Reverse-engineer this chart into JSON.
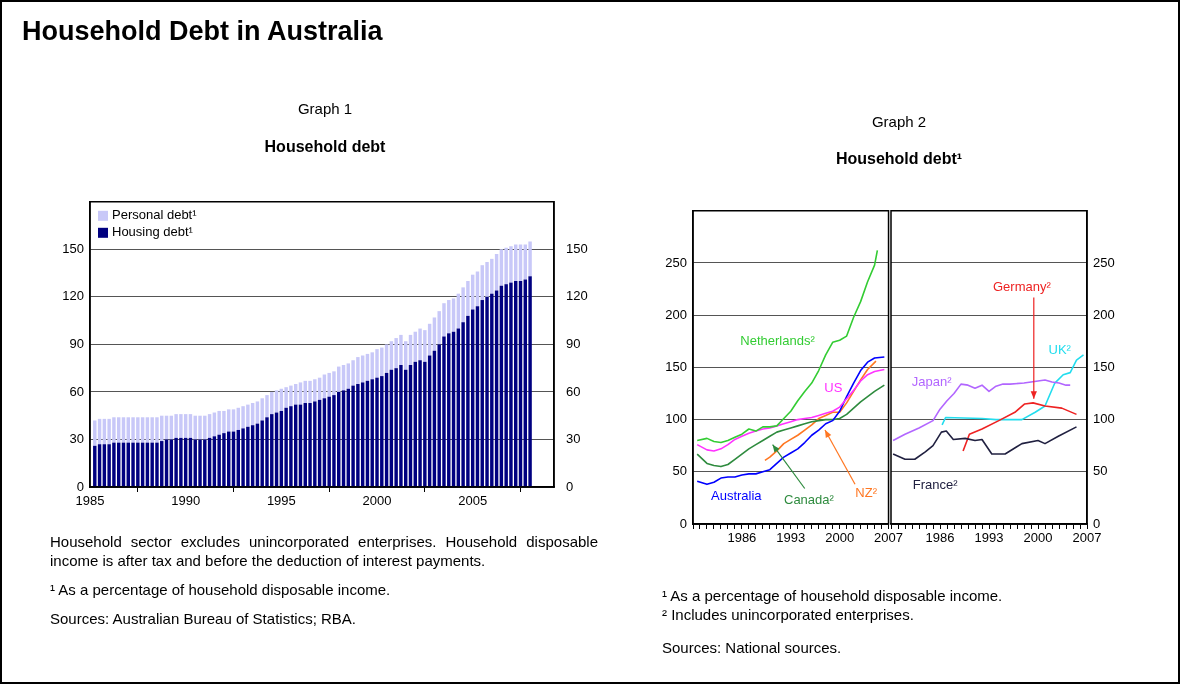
{
  "chart_data": [
    {
      "type": "bar",
      "title": "Household debt",
      "subtitle": "Graph 1",
      "stacked": true,
      "legend": "top left",
      "grid": "y",
      "annotations": [
        "Household Debt in Australia",
        "Household sector excludes unincorporated enterprises. Household disposable income is after tax and before the deduction of interest payments.",
        "¹ As a percentage of household disposable income.",
        "Sources: Australian Bureau of Statistics; RBA."
      ],
      "x": [
        1985.25,
        1985.5,
        1985.75,
        1986,
        1986.25,
        1986.5,
        1986.75,
        1987,
        1987.25,
        1987.5,
        1987.75,
        1988,
        1988.25,
        1988.5,
        1988.75,
        1989,
        1989.25,
        1989.5,
        1989.75,
        1990,
        1990.25,
        1990.5,
        1990.75,
        1991,
        1991.25,
        1991.5,
        1991.75,
        1992,
        1992.25,
        1992.5,
        1992.75,
        1993,
        1993.25,
        1993.5,
        1993.75,
        1994,
        1994.25,
        1994.5,
        1994.75,
        1995,
        1995.25,
        1995.5,
        1995.75,
        1996,
        1996.25,
        1996.5,
        1996.75,
        1997,
        1997.25,
        1997.5,
        1997.75,
        1998,
        1998.25,
        1998.5,
        1998.75,
        1999,
        1999.25,
        1999.5,
        1999.75,
        2000,
        2000.25,
        2000.5,
        2000.75,
        2001,
        2001.25,
        2001.5,
        2001.75,
        2002,
        2002.25,
        2002.5,
        2002.75,
        2003,
        2003.25,
        2003.5,
        2003.75,
        2004,
        2004.25,
        2004.5,
        2004.75,
        2005,
        2005.25,
        2005.5,
        2005.75,
        2006,
        2006.25,
        2006.5,
        2006.75,
        2007,
        2007.25,
        2007.5,
        2007.75,
        2008
      ],
      "series": [
        {
          "name": "Housing debt¹",
          "color": "#000080",
          "values": [
            26,
            27,
            27,
            27,
            28,
            28,
            28,
            28,
            28,
            28,
            28,
            28,
            28,
            28,
            29,
            30,
            30,
            31,
            31,
            31,
            31,
            30,
            30,
            30,
            31,
            32,
            33,
            34,
            35,
            35,
            36,
            37,
            38,
            39,
            40,
            42,
            44,
            46,
            47,
            48,
            50,
            51,
            52,
            52,
            53,
            53,
            54,
            55,
            56,
            57,
            58,
            60,
            61,
            62,
            64,
            65,
            66,
            67,
            68,
            69,
            70,
            72,
            74,
            75,
            77,
            74,
            77,
            79,
            80,
            79,
            83,
            86,
            90,
            95,
            97,
            98,
            100,
            104,
            108,
            112,
            114,
            118,
            120,
            122,
            124,
            127,
            128,
            129,
            130,
            130,
            131,
            133
          ]
        },
        {
          "name": "Personal debt¹",
          "color": "#c8c8f8",
          "values": [
            16,
            16,
            16,
            16,
            16,
            16,
            16,
            16,
            16,
            16,
            16,
            16,
            16,
            16,
            16,
            15,
            15,
            15,
            15,
            15,
            15,
            15,
            15,
            15,
            15,
            15,
            15,
            14,
            14,
            14,
            14,
            14,
            14,
            14,
            14,
            14,
            14,
            14,
            14,
            14,
            13,
            13,
            13,
            14,
            14,
            14,
            14,
            14,
            15,
            15,
            15,
            16,
            16,
            16,
            16,
            17,
            17,
            17,
            17,
            18,
            18,
            18,
            18,
            19,
            19,
            18,
            19,
            19,
            20,
            20,
            20,
            21,
            21,
            21,
            21,
            21,
            22,
            22,
            22,
            22,
            22,
            22,
            22,
            22,
            23,
            23,
            23,
            23,
            23,
            23,
            22,
            22
          ]
        }
      ],
      "xlim": [
        1985,
        2009.25
      ],
      "xticks": [
        1985,
        1990,
        1995,
        2000,
        2005
      ],
      "ylim": [
        0,
        180
      ],
      "yticks": [
        0,
        30,
        60,
        90,
        120,
        150
      ],
      "y2lim": [
        0,
        180
      ],
      "y2ticks": [
        0,
        30,
        60,
        90,
        120,
        150
      ]
    },
    {
      "type": "line",
      "title": "Household debt¹",
      "subtitle": "Graph 2",
      "grid": "y",
      "marker": "none",
      "line_style": "solid",
      "annotations": [
        "¹ As a percentage of household disposable income.",
        "² Includes unincorporated enterprises.",
        "Sources: National sources."
      ],
      "series": [
        {
          "name": "Netherlands²",
          "color": "#33cc33",
          "x": [
            1979.6,
            1981,
            1982,
            1983,
            1984,
            1985,
            1986,
            1987,
            1988,
            1989,
            1990,
            1991,
            1992,
            1993,
            1994,
            1995,
            1996,
            1997,
            1998,
            1999,
            2000,
            2001,
            2002,
            2003,
            2004,
            2005,
            2005.4
          ],
          "values": [
            80,
            82,
            79,
            78,
            80,
            83,
            86,
            91,
            89,
            93,
            93,
            94,
            101,
            108,
            118,
            127,
            135,
            147,
            162,
            174,
            176,
            180,
            198,
            213,
            232,
            248,
            262
          ]
        },
        {
          "name": "US",
          "color": "#ff33ff",
          "x": [
            1979.6,
            1981,
            1982,
            1983,
            1984,
            1985,
            1986,
            1987,
            1988,
            1989,
            1990,
            1991,
            1992,
            1993,
            1994,
            1995,
            1996,
            1997,
            1998,
            1999,
            2000,
            2001,
            2002,
            2003,
            2004,
            2005,
            2006.4
          ],
          "values": [
            76,
            71,
            70,
            72,
            76,
            81,
            84,
            87,
            89,
            91,
            92,
            94,
            96,
            98,
            100,
            101,
            102,
            104,
            106,
            108,
            112,
            120,
            128,
            137,
            143,
            146,
            148
          ]
        },
        {
          "name": "Australia",
          "color": "#0000ff",
          "x": [
            1979.6,
            1981,
            1982,
            1983,
            1984,
            1985,
            1986,
            1987,
            1988,
            1989,
            1990,
            1991,
            1992,
            1993,
            1994,
            1995,
            1996,
            1997,
            1998,
            1999,
            2000,
            2001,
            2002,
            2003,
            2004,
            2005,
            2006.4
          ],
          "values": [
            41,
            38,
            40,
            44,
            45,
            45,
            47,
            48,
            48,
            50,
            52,
            58,
            64,
            68,
            72,
            78,
            85,
            90,
            96,
            99,
            108,
            122,
            135,
            147,
            155,
            159,
            160
          ]
        },
        {
          "name": "Canada²",
          "color": "#2e8b3e",
          "x": [
            1979.6,
            1981,
            1982,
            1983,
            1984,
            1985,
            1986,
            1987,
            1988,
            1989,
            1990,
            1991,
            1992,
            1993,
            1994,
            1995,
            1996,
            1997,
            1998,
            1999,
            2000,
            2001,
            2002,
            2003,
            2004,
            2005,
            2006.4
          ],
          "values": [
            67,
            58,
            56,
            55,
            57,
            62,
            67,
            72,
            76,
            80,
            84,
            88,
            90,
            92,
            94,
            96,
            98,
            99,
            100,
            100,
            101,
            105,
            111,
            117,
            122,
            127,
            133
          ]
        },
        {
          "name": "NZ²",
          "color": "#ff7722",
          "x": [
            1989.3,
            1990,
            1991,
            1992,
            1993,
            1994,
            1995,
            1996,
            1997,
            1998,
            1999,
            2000,
            2001,
            2002,
            2003,
            2004,
            2005.2
          ],
          "values": [
            61,
            64,
            70,
            77,
            81,
            85,
            90,
            95,
            101,
            104,
            107,
            107,
            116,
            127,
            138,
            148,
            156
          ]
        }
      ],
      "xlim": [
        1979,
        2007
      ],
      "xticks": [
        {
          "value": 1979,
          "label": null
        },
        {
          "value": 1980,
          "label": null
        },
        {
          "value": 1981,
          "label": null
        },
        {
          "value": 1982,
          "label": null
        },
        {
          "value": 1983,
          "label": null
        },
        {
          "value": 1984,
          "label": null
        },
        {
          "value": 1985,
          "label": null
        },
        1986,
        {
          "value": 1987,
          "label": null
        },
        {
          "value": 1988,
          "label": null
        },
        {
          "value": 1989,
          "label": null
        },
        {
          "value": 1990,
          "label": null
        },
        {
          "value": 1991,
          "label": null
        },
        {
          "value": 1992,
          "label": null
        },
        1993,
        {
          "value": 1994,
          "label": null
        },
        {
          "value": 1995,
          "label": null
        },
        {
          "value": 1996,
          "label": null
        },
        {
          "value": 1997,
          "label": null
        },
        {
          "value": 1998,
          "label": null
        },
        {
          "value": 1999,
          "label": null
        },
        2000,
        {
          "value": 2001,
          "label": null
        },
        {
          "value": 2002,
          "label": null
        },
        {
          "value": 2003,
          "label": null
        },
        {
          "value": 2004,
          "label": null
        },
        {
          "value": 2005,
          "label": null
        },
        {
          "value": 2006,
          "label": null
        },
        2007
      ],
      "ylim": [
        0,
        300
      ],
      "yticks": [
        0,
        50,
        100,
        150,
        200,
        250
      ]
    },
    {
      "type": "line",
      "grid": "y",
      "marker": "none",
      "line_style": "solid",
      "series": [
        {
          "name": "Japan²",
          "color": "#b266ff",
          "x": [
            1979.3,
            1981,
            1983,
            1985,
            1986,
            1987,
            1988,
            1989,
            1990,
            1991,
            1992,
            1993,
            1994,
            1995,
            1996,
            1998,
            2000,
            2001,
            2002,
            2003,
            2004,
            2004.6
          ],
          "values": [
            80,
            86,
            92,
            99,
            110,
            118,
            125,
            134,
            133,
            130,
            133,
            127,
            132,
            134,
            134,
            135,
            137,
            138,
            136,
            135,
            133,
            133
          ]
        },
        {
          "name": "France²",
          "color": "#202040",
          "x": [
            1979.3,
            1981,
            1982.4,
            1983.9,
            1985,
            1986.2,
            1986.9,
            1987.9,
            1989.6,
            1991,
            1992,
            1993.4,
            1995.3,
            1997.7,
            2000,
            2001,
            2002.9,
            2005.5
          ],
          "values": [
            67,
            62,
            62,
            69,
            75,
            88,
            89,
            81,
            82,
            80,
            81,
            67,
            67,
            77,
            80,
            77,
            84,
            93
          ]
        },
        {
          "name": "Germany²",
          "color": "#ee2222",
          "x": [
            1989.3,
            1990.2,
            1992,
            1994.4,
            1996.7,
            1998.1,
            1999.3,
            2001,
            2003.4,
            2005.5
          ],
          "values": [
            70,
            86,
            91,
            99,
            107,
            115,
            116,
            113,
            111,
            105
          ]
        },
        {
          "name": "UK²",
          "color": "#22ddee",
          "x": [
            1986.3,
            1986.8,
            1992,
            1994,
            1997.7,
            1999.6,
            2001,
            2002.4,
            2003.6,
            2004.6,
            2005.5,
            2006.5
          ],
          "values": [
            95,
            102,
            101,
            100,
            100,
            107,
            113,
            135,
            143,
            145,
            157,
            162
          ]
        }
      ],
      "xlim": [
        1979,
        2007
      ],
      "xticks": [
        {
          "value": 1979,
          "label": null
        },
        {
          "value": 1980,
          "label": null
        },
        {
          "value": 1981,
          "label": null
        },
        {
          "value": 1982,
          "label": null
        },
        {
          "value": 1983,
          "label": null
        },
        {
          "value": 1984,
          "label": null
        },
        {
          "value": 1985,
          "label": null
        },
        1986,
        {
          "value": 1987,
          "label": null
        },
        {
          "value": 1988,
          "label": null
        },
        {
          "value": 1989,
          "label": null
        },
        {
          "value": 1990,
          "label": null
        },
        {
          "value": 1991,
          "label": null
        },
        {
          "value": 1992,
          "label": null
        },
        1993,
        {
          "value": 1994,
          "label": null
        },
        {
          "value": 1995,
          "label": null
        },
        {
          "value": 1996,
          "label": null
        },
        {
          "value": 1997,
          "label": null
        },
        {
          "value": 1998,
          "label": null
        },
        {
          "value": 1999,
          "label": null
        },
        2000,
        {
          "value": 2001,
          "label": null
        },
        {
          "value": 2002,
          "label": null
        },
        {
          "value": 2003,
          "label": null
        },
        {
          "value": 2004,
          "label": null
        },
        {
          "value": 2005,
          "label": null
        },
        {
          "value": 2006,
          "label": null
        },
        2007
      ],
      "ylim": [
        0,
        300
      ],
      "yticks": [
        0,
        50,
        100,
        150,
        200,
        250
      ]
    }
  ]
}
